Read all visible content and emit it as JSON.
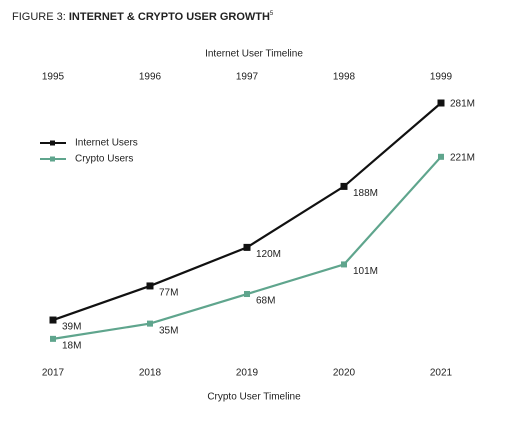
{
  "chart_data": {
    "type": "line",
    "title_prefix": "FIGURE 3:",
    "title": "INTERNET & CRYPTO USER GROWTH",
    "title_note": "5",
    "top_axis_label": "Internet User Timeline",
    "top_categories": [
      "1995",
      "1996",
      "1997",
      "1998",
      "1999"
    ],
    "x_label": "Crypto User Timeline",
    "categories": [
      "2017",
      "2018",
      "2019",
      "2020",
      "2021"
    ],
    "series": [
      {
        "name": "Internet Users",
        "color": "#111111",
        "axis": "top",
        "values": [
          39,
          77,
          120,
          188,
          281
        ],
        "value_labels": [
          "39M",
          "77M",
          "120M",
          "188M",
          "281M"
        ]
      },
      {
        "name": "Crypto Users",
        "color": "#5fa58d",
        "axis": "bottom",
        "values": [
          18,
          35,
          68,
          101,
          221
        ],
        "value_labels": [
          "18M",
          "35M",
          "68M",
          "101M",
          "221M"
        ]
      }
    ],
    "legend": "upper left"
  }
}
